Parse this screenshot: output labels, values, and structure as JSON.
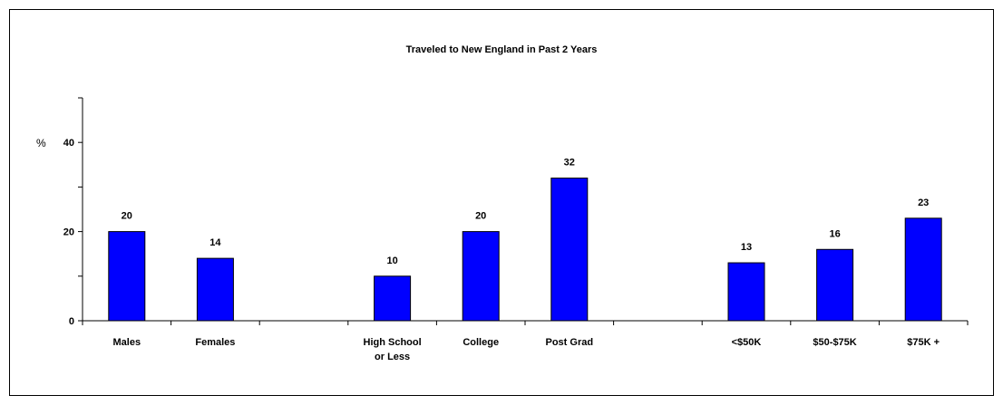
{
  "chart_data": {
    "type": "bar",
    "title": "Traveled to New England in Past 2 Years",
    "ylabel": "%",
    "ylim": [
      0,
      50
    ],
    "yticks": [
      0,
      20,
      40
    ],
    "grid": false,
    "legend": "none",
    "bar_color": "#0000FF",
    "categories": [
      {
        "label_lines": [
          "Males"
        ],
        "value": 20
      },
      {
        "label_lines": [
          "Females"
        ],
        "value": 14
      },
      {
        "label_lines": [],
        "value": null
      },
      {
        "label_lines": [
          "High School",
          "or Less"
        ],
        "value": 10
      },
      {
        "label_lines": [
          "College"
        ],
        "value": 20
      },
      {
        "label_lines": [
          "Post Grad"
        ],
        "value": 32
      },
      {
        "label_lines": [],
        "value": null
      },
      {
        "label_lines": [
          "<$50K"
        ],
        "value": 13
      },
      {
        "label_lines": [
          "$50-$75K"
        ],
        "value": 16
      },
      {
        "label_lines": [
          "$75K +"
        ],
        "value": 23
      }
    ]
  }
}
